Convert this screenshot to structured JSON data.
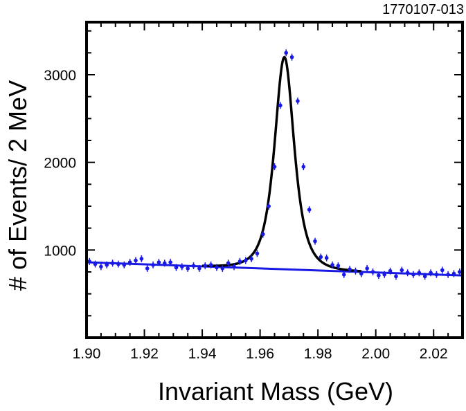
{
  "figure_id": "1770107-013",
  "chart_data": {
    "type": "scatter",
    "title": "",
    "xlabel": "Invariant Mass  (GeV)",
    "ylabel": "# of Events/ 2 MeV",
    "xlim": [
      1.9,
      2.03
    ],
    "ylim": [
      0,
      3600
    ],
    "xticks": [
      1.9,
      1.92,
      1.94,
      1.96,
      1.98,
      2.0,
      2.02
    ],
    "xtick_labels": [
      "1.90",
      "1.92",
      "1.94",
      "1.96",
      "1.98",
      "2.00",
      "2.02"
    ],
    "yticks": [
      1000,
      2000,
      3000
    ],
    "ytick_labels": [
      "1000",
      "2000",
      "3000"
    ],
    "grid": false,
    "colors": {
      "points": "#1a1ae6",
      "fit": "#000000",
      "background_fit": "#1a1ae6"
    },
    "series": [
      {
        "kind": "points",
        "x": [
          1.901,
          1.903,
          1.905,
          1.907,
          1.909,
          1.911,
          1.913,
          1.915,
          1.917,
          1.919,
          1.921,
          1.923,
          1.925,
          1.927,
          1.929,
          1.931,
          1.933,
          1.935,
          1.937,
          1.939,
          1.941,
          1.943,
          1.945,
          1.947,
          1.949,
          1.951,
          1.953,
          1.955,
          1.957,
          1.959,
          1.961,
          1.963,
          1.965,
          1.967,
          1.969,
          1.971,
          1.973,
          1.975,
          1.977,
          1.979,
          1.981,
          1.983,
          1.985,
          1.987,
          1.989,
          1.991,
          1.993,
          1.995,
          1.997,
          1.999,
          2.001,
          2.003,
          2.005,
          2.007,
          2.009,
          2.011,
          2.013,
          2.015,
          2.017,
          2.019,
          2.021,
          2.023,
          2.025,
          2.027,
          2.029
        ],
        "y": [
          870,
          840,
          810,
          830,
          850,
          840,
          830,
          860,
          880,
          900,
          790,
          830,
          860,
          850,
          860,
          800,
          810,
          790,
          820,
          790,
          820,
          830,
          800,
          790,
          850,
          810,
          870,
          880,
          900,
          960,
          1180,
          1500,
          1950,
          2650,
          3250,
          3200,
          2700,
          1950,
          1460,
          1100,
          920,
          910,
          830,
          820,
          720,
          780,
          760,
          730,
          790,
          750,
          710,
          720,
          760,
          700,
          770,
          740,
          720,
          740,
          700,
          740,
          720,
          770,
          720,
          730,
          750
        ]
      }
    ],
    "fit": {
      "mean": 1.9684,
      "width": 0.0043,
      "peak_height": 2420,
      "background_start": 860,
      "background_slope": -1160
    }
  }
}
